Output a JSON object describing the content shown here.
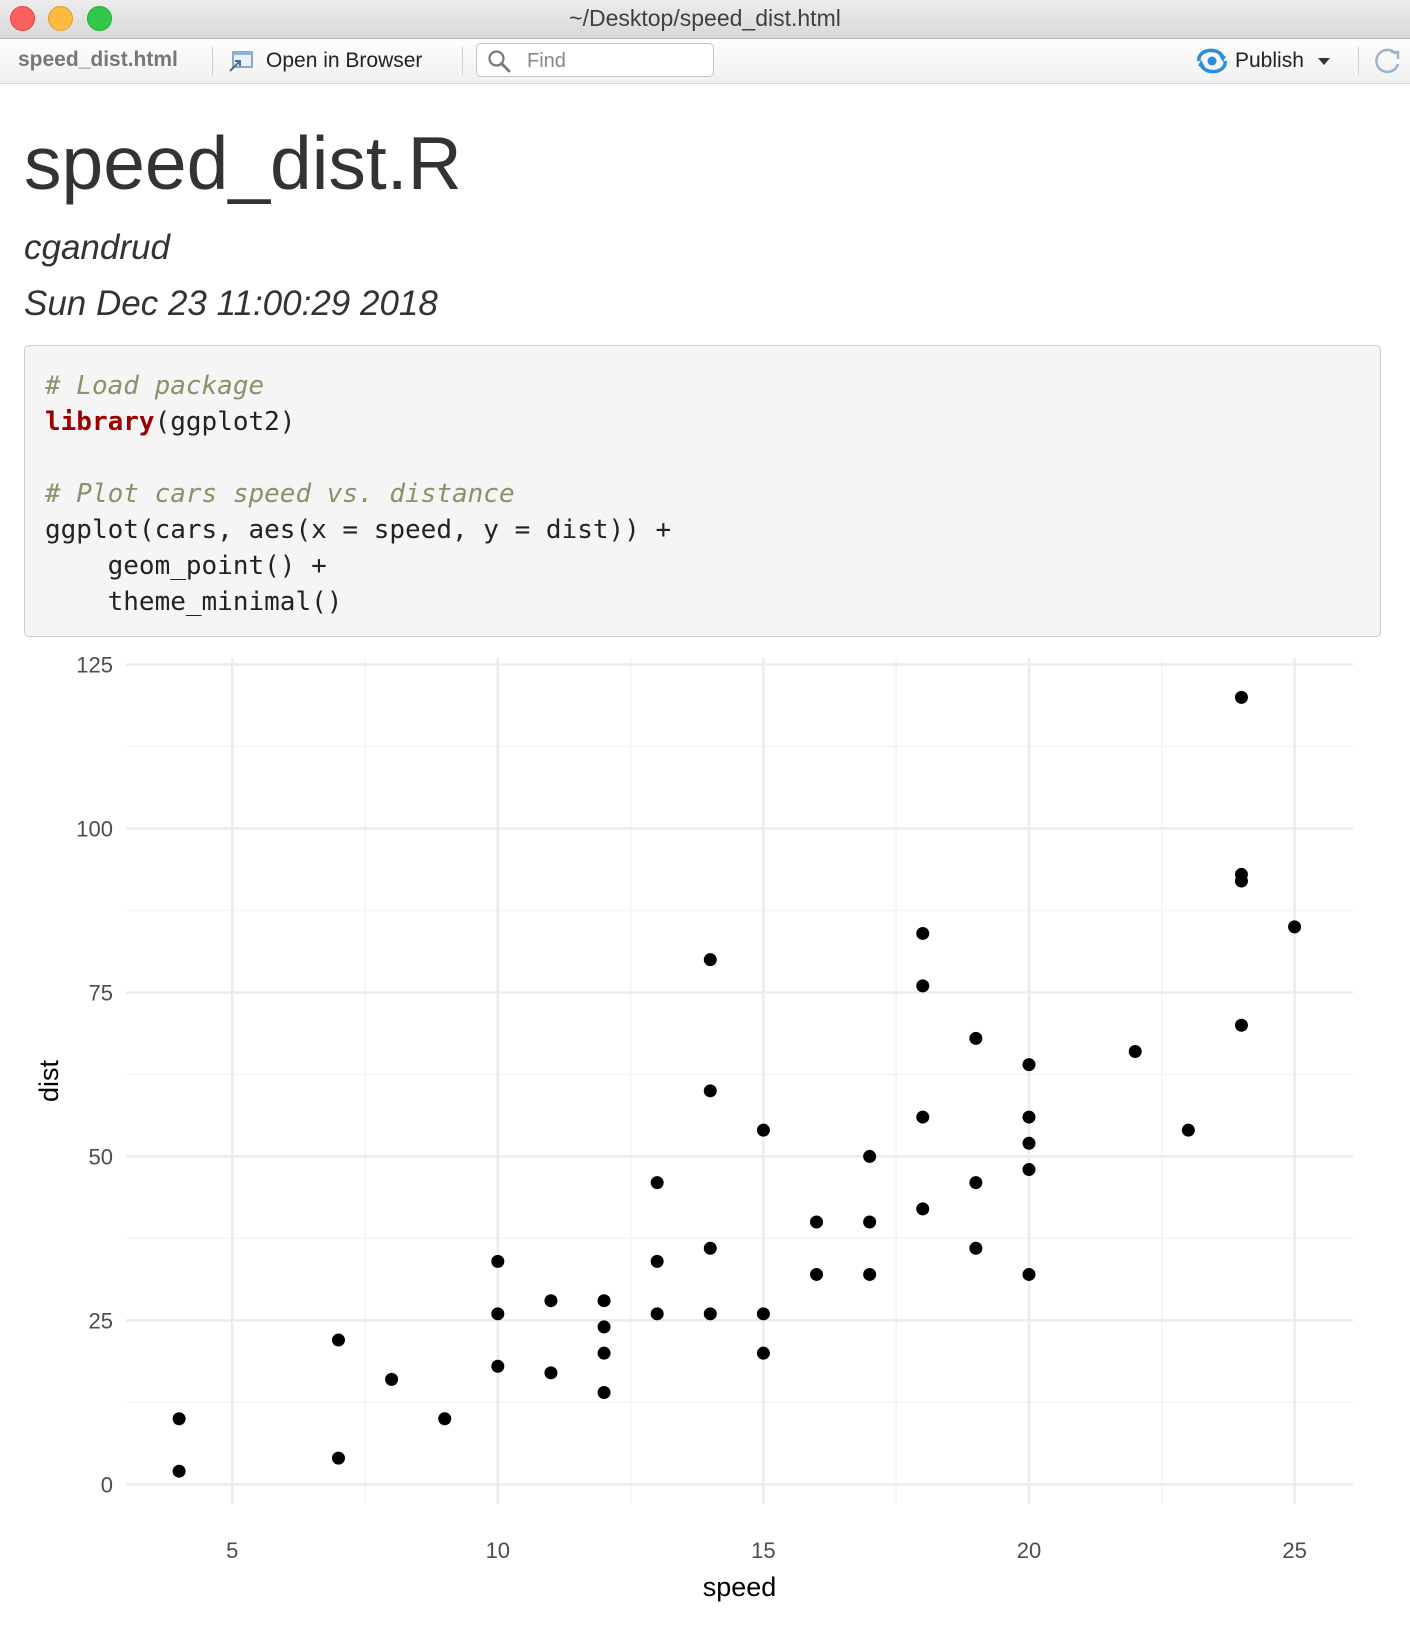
{
  "window": {
    "title": "~/Desktop/speed_dist.html"
  },
  "toolbar": {
    "file_label": "speed_dist.html",
    "open_in_browser_label": "Open in Browser",
    "find_placeholder": "Find",
    "publish_label": "Publish"
  },
  "document": {
    "title": "speed_dist.R",
    "author": "cgandrud",
    "date": "Sun Dec 23 11:00:29 2018",
    "code": {
      "comment1": "# Load package",
      "library_fn": "library",
      "library_arg": "(ggplot2)",
      "comment2": "# Plot cars speed vs. distance",
      "line_ggplot": "ggplot(cars, aes(x = speed, y = dist)) +",
      "line_geom": "    geom_point() +",
      "line_theme": "    theme_minimal()"
    }
  },
  "colors": {
    "keyword": "#990000",
    "comment": "#8f8f6a",
    "publish_icon": "#2a8fd6",
    "point": "#000000",
    "grid": "#ebebeb"
  },
  "chart_data": {
    "type": "scatter",
    "xlabel": "speed",
    "ylabel": "dist",
    "xlim": [
      3,
      26.1
    ],
    "ylim": [
      -3,
      126
    ],
    "xticks": [
      5,
      10,
      15,
      20,
      25
    ],
    "yticks": [
      0,
      25,
      50,
      75,
      100,
      125
    ],
    "grid": true,
    "points": [
      [
        4,
        2
      ],
      [
        4,
        10
      ],
      [
        7,
        4
      ],
      [
        7,
        22
      ],
      [
        8,
        16
      ],
      [
        9,
        10
      ],
      [
        10,
        18
      ],
      [
        10,
        26
      ],
      [
        10,
        34
      ],
      [
        11,
        17
      ],
      [
        11,
        28
      ],
      [
        12,
        14
      ],
      [
        12,
        20
      ],
      [
        12,
        24
      ],
      [
        12,
        28
      ],
      [
        13,
        26
      ],
      [
        13,
        34
      ],
      [
        13,
        46
      ],
      [
        14,
        26
      ],
      [
        14,
        36
      ],
      [
        14,
        60
      ],
      [
        14,
        80
      ],
      [
        15,
        20
      ],
      [
        15,
        26
      ],
      [
        15,
        54
      ],
      [
        16,
        32
      ],
      [
        16,
        40
      ],
      [
        17,
        32
      ],
      [
        17,
        40
      ],
      [
        17,
        50
      ],
      [
        18,
        42
      ],
      [
        18,
        56
      ],
      [
        18,
        76
      ],
      [
        18,
        84
      ],
      [
        19,
        36
      ],
      [
        19,
        46
      ],
      [
        19,
        68
      ],
      [
        20,
        32
      ],
      [
        20,
        48
      ],
      [
        20,
        52
      ],
      [
        20,
        56
      ],
      [
        20,
        64
      ],
      [
        22,
        66
      ],
      [
        23,
        54
      ],
      [
        24,
        70
      ],
      [
        24,
        92
      ],
      [
        24,
        93
      ],
      [
        24,
        120
      ],
      [
        25,
        85
      ]
    ]
  }
}
